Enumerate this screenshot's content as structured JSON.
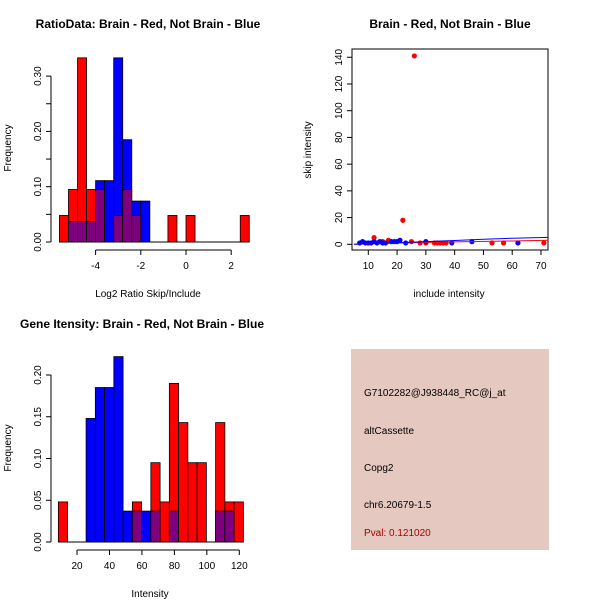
{
  "chart_data": [
    {
      "type": "bar",
      "title": "RatioData: Brain - Red, Not Brain - Blue",
      "xlabel": "Log2 Ratio Skip/Include",
      "ylabel": "Frequency",
      "bin_start": -5.6,
      "bin_width": 0.4,
      "series": [
        {
          "name": "Brain",
          "color": "#ff0000",
          "values": [
            0.048,
            0.095,
            0.333,
            0.095,
            0.095,
            0,
            0.048,
            0.095,
            0.048,
            0,
            0,
            0,
            0.048,
            0,
            0.048,
            0,
            0,
            0,
            0,
            0,
            0.048
          ]
        },
        {
          "name": "Not Brain",
          "color": "#0000ff",
          "values": [
            0,
            0.037,
            0.037,
            0.037,
            0.111,
            0.111,
            0.333,
            0.185,
            0.074,
            0.074,
            0,
            0,
            0,
            0,
            0,
            0,
            0,
            0,
            0,
            0,
            0
          ]
        }
      ],
      "overlap_color": "#7f007f",
      "xticks": [
        -4,
        -2,
        0,
        2
      ],
      "xtick_labels": [
        "-4",
        "-2",
        "0",
        "2"
      ],
      "yticks": [
        0,
        0.05,
        0.1,
        0.15,
        0.2,
        0.25,
        0.3
      ],
      "ytick_labels": [
        "0.00",
        "",
        "0.10",
        "",
        "0.20",
        "",
        "0.30"
      ],
      "ylim": [
        0,
        0.333
      ]
    },
    {
      "type": "scatter",
      "title": "Brain - Red, Not Brain - Blue",
      "xlabel": "include intensity",
      "ylabel": "skip intensity",
      "xlim": [
        4,
        72.5
      ],
      "ylim": [
        -4.5,
        146
      ],
      "xticks": [
        10,
        20,
        30,
        40,
        50,
        60,
        70
      ],
      "xtick_labels": [
        "10",
        "20",
        "30",
        "40",
        "50",
        "60",
        "70"
      ],
      "yticks": [
        0,
        20,
        40,
        60,
        80,
        100,
        120,
        140
      ],
      "ytick_labels": [
        "0",
        "20",
        "40",
        "60",
        "80",
        "100",
        "120",
        "140"
      ],
      "series": [
        {
          "name": "Brain",
          "color": "#ff0000",
          "points": [
            [
              26,
              141
            ],
            [
              22,
              18
            ],
            [
              12,
              5
            ],
            [
              71,
              1
            ],
            [
              57,
              1
            ],
            [
              53,
              1
            ],
            [
              34,
              1
            ],
            [
              35,
              1
            ],
            [
              36,
              1
            ],
            [
              28,
              1
            ],
            [
              30,
              1
            ],
            [
              17,
              3
            ],
            [
              15,
              2
            ],
            [
              21,
              3
            ],
            [
              25,
              2
            ],
            [
              33,
              1
            ],
            [
              37,
              1
            ]
          ],
          "fit": [
            [
              5,
              0
            ],
            [
              20,
              1
            ],
            [
              40,
              1.8
            ],
            [
              60,
              2.5
            ],
            [
              72.5,
              3
            ]
          ]
        },
        {
          "name": "Not Brain",
          "color": "#0000ff",
          "points": [
            [
              7,
              1
            ],
            [
              8,
              2
            ],
            [
              9,
              1
            ],
            [
              10,
              1
            ],
            [
              11,
              1
            ],
            [
              12,
              2
            ],
            [
              13,
              1
            ],
            [
              14,
              2
            ],
            [
              15,
              1
            ],
            [
              16,
              1
            ],
            [
              18,
              2
            ],
            [
              19,
              2
            ],
            [
              20,
              2
            ],
            [
              21,
              3
            ],
            [
              23,
              1
            ],
            [
              30,
              2
            ],
            [
              39,
              1
            ],
            [
              46,
              2
            ],
            [
              62,
              1
            ]
          ],
          "fit": [
            [
              5,
              0
            ],
            [
              20,
              1.2
            ],
            [
              40,
              2.8
            ],
            [
              50,
              3.8
            ],
            [
              60,
              4.5
            ],
            [
              72.5,
              5.2
            ]
          ]
        }
      ]
    },
    {
      "type": "bar",
      "title": "Gene Itensity: Brain - Red, Not Brain - Blue",
      "xlabel": "Intensity",
      "ylabel": "Frequency",
      "bin_start": 8.5,
      "bin_width": 5.7,
      "series": [
        {
          "name": "Brain",
          "color": "#ff0000",
          "values": [
            0.048,
            0,
            0,
            0,
            0,
            0,
            0,
            0,
            0.048,
            0,
            0.095,
            0.048,
            0.19,
            0.143,
            0.095,
            0.095,
            0,
            0.143,
            0.048,
            0.048
          ]
        },
        {
          "name": "Not Brain",
          "color": "#0000ff",
          "values": [
            0,
            0,
            0,
            0.148,
            0.185,
            0.185,
            0.222,
            0.037,
            0.037,
            0.037,
            0.037,
            0,
            0.037,
            0,
            0,
            0,
            0,
            0.037,
            0.037,
            0
          ]
        }
      ],
      "overlap_color": "#7f007f",
      "xticks": [
        20,
        40,
        60,
        80,
        100,
        120
      ],
      "xtick_labels": [
        "20",
        "40",
        "60",
        "80",
        "100",
        "120"
      ],
      "yticks": [
        0,
        0.05,
        0.1,
        0.15,
        0.2
      ],
      "ytick_labels": [
        "0.00",
        "0.05",
        "0.10",
        "0.15",
        "0.20"
      ],
      "ylim": [
        0,
        0.222
      ]
    }
  ],
  "info": {
    "probe": "G7102282@J938448_RC@j_at",
    "event_type": "altCassette",
    "gene": "Copg2",
    "location": "chr6.20679-1.5",
    "pval": "Pval: 0.121020",
    "background": "#e5c8c0",
    "pval_color": "#aa0000"
  }
}
